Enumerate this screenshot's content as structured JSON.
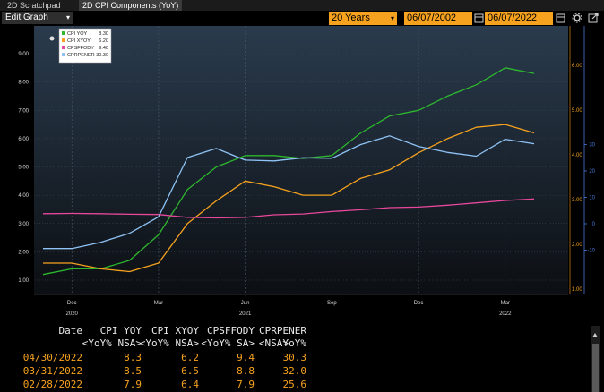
{
  "tabs": [
    {
      "label": "2D Scratchpad"
    },
    {
      "label": "2D CPI Components (YoY)"
    }
  ],
  "toolbar": {
    "edit_graph": "Edit Graph",
    "period": "20 Years",
    "start_date": "06/07/2002",
    "end_date": "06/07/2022"
  },
  "legend": [
    {
      "name": "CPI YOY",
      "value": "8.30",
      "color": "#2db82d"
    },
    {
      "name": "CPI XYOY",
      "value": "6.20",
      "color": "#f6a21e"
    },
    {
      "name": "CPSFFODY",
      "value": "9.40",
      "color": "#e8489c"
    },
    {
      "name": "CPRPENER",
      "value": "30.30",
      "color": "#8fc3f5"
    }
  ],
  "chart_data": {
    "type": "line",
    "x": [
      "2020-11",
      "2020-12",
      "2021-01",
      "2021-02",
      "2021-03",
      "2021-04",
      "2021-05",
      "2021-06",
      "2021-07",
      "2021-08",
      "2021-09",
      "2021-10",
      "2021-11",
      "2021-12",
      "2022-01",
      "2022-02",
      "2022-03",
      "2022-04"
    ],
    "series": [
      {
        "name": "CPI YOY",
        "axis": "left",
        "color": "#2db82d",
        "values": [
          1.2,
          1.4,
          1.4,
          1.7,
          2.6,
          4.2,
          5.0,
          5.4,
          5.4,
          5.3,
          5.4,
          6.2,
          6.8,
          7.0,
          7.5,
          7.9,
          8.5,
          8.3
        ]
      },
      {
        "name": "CPI XYOY",
        "axis": "left",
        "color": "#f6a21e",
        "values": [
          1.6,
          1.6,
          1.4,
          1.3,
          1.6,
          3.0,
          3.8,
          4.5,
          4.3,
          4.0,
          4.0,
          4.6,
          4.9,
          5.5,
          6.0,
          6.4,
          6.5,
          6.2
        ]
      },
      {
        "name": "CPSFFODY",
        "axis": "right",
        "color": "#e8489c",
        "values": [
          3.8,
          3.9,
          3.8,
          3.6,
          3.5,
          2.4,
          2.2,
          2.4,
          3.4,
          3.7,
          4.6,
          5.3,
          6.1,
          6.3,
          7.0,
          7.9,
          8.8,
          9.4
        ]
      },
      {
        "name": "CPRPENER",
        "axis": "right",
        "color": "#8fc3f5",
        "values": [
          -9.4,
          -9.4,
          -7.0,
          -3.6,
          2.6,
          25.1,
          28.5,
          24.1,
          23.8,
          25.0,
          24.8,
          30.0,
          33.3,
          29.3,
          27.0,
          25.6,
          32.0,
          30.3
        ]
      }
    ],
    "left_axis": {
      "ylim": [
        0.5,
        9.6
      ],
      "ticks": [
        "1.00",
        "2.00",
        "3.00",
        "4.00",
        "5.00",
        "6.00",
        "7.00",
        "8.00",
        "9.00"
      ]
    },
    "right_axis_outer": {
      "label_color": "#4a78d8",
      "ticks": [
        "-10",
        "0",
        "10",
        "20",
        "30"
      ]
    },
    "right_axis_inner": {
      "label_color": "#f6a21e",
      "ticks": [
        "1.00",
        "2.00",
        "3.00",
        "4.00",
        "5.00",
        "6.00"
      ]
    },
    "x_ticks": [
      {
        "label": "Dec",
        "x": "2020-12"
      },
      {
        "label": "Mar",
        "x": "2021-03"
      },
      {
        "label": "Jun",
        "x": "2021-06"
      },
      {
        "label": "Sep",
        "x": "2021-09"
      },
      {
        "label": "Dec",
        "x": "2021-12"
      },
      {
        "label": "Mar",
        "x": "2022-03"
      }
    ],
    "x_years": [
      {
        "label": "2020",
        "x": "2020-12"
      },
      {
        "label": "2021",
        "x": "2021-06"
      },
      {
        "label": "2022",
        "x": "2022-03"
      }
    ],
    "grid": true,
    "legend_position": "top-left"
  },
  "table": {
    "headers": [
      "Date",
      "CPI YOY",
      "CPI XYOY",
      "CPSFFODY",
      "CPRPENER"
    ],
    "subheaders": [
      "<YoY% NSA>",
      "<YoY% NSA>",
      "<YoY% SA>",
      "<NSA>",
      "YoY%"
    ],
    "rows": [
      [
        "04/30/2022",
        "8.3",
        "6.2",
        "9.4",
        "30.3"
      ],
      [
        "03/31/2022",
        "8.5",
        "6.5",
        "8.8",
        "32.0"
      ],
      [
        "02/28/2022",
        "7.9",
        "6.4",
        "7.9",
        "25.6"
      ]
    ]
  }
}
